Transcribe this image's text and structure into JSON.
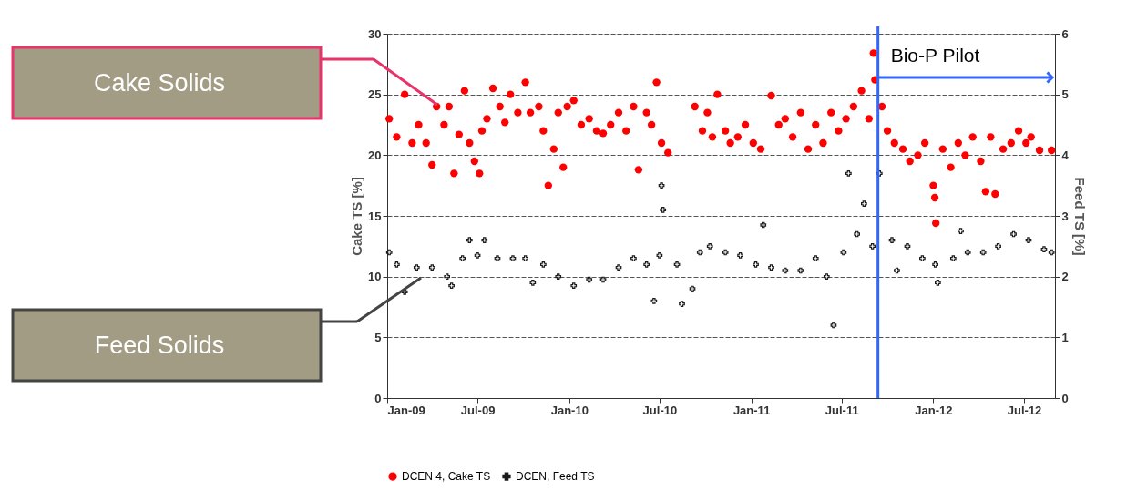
{
  "chart_data": {
    "type": "scatter",
    "ylabel": "Cake TS [%]",
    "y2label": "Feed TS [%]",
    "xlim": [
      "2009-01-01",
      "2012-09-01"
    ],
    "xticks": [
      {
        "value": "2009-01-01",
        "label": "Jan-09"
      },
      {
        "value": "2009-07-01",
        "label": "Jul-09"
      },
      {
        "value": "2010-01-01",
        "label": "Jan-10"
      },
      {
        "value": "2010-07-01",
        "label": "Jul-10"
      },
      {
        "value": "2011-01-01",
        "label": "Jan-11"
      },
      {
        "value": "2011-07-01",
        "label": "Jul-11"
      },
      {
        "value": "2012-01-01",
        "label": "Jan-12"
      },
      {
        "value": "2012-07-01",
        "label": "Jul-12"
      }
    ],
    "ylim": [
      0,
      30
    ],
    "yticks": [
      0,
      5,
      10,
      15,
      20,
      25,
      30
    ],
    "y2lim": [
      0,
      6
    ],
    "y2ticks": [
      0,
      1,
      2,
      3,
      4,
      5,
      6
    ],
    "grid": "y",
    "legend": "bottom",
    "series": [
      {
        "name": "DCEN 4, Cake TS",
        "color": "#ff0000",
        "marker": "circle",
        "x": [
          "2009-01-05",
          "2009-01-20",
          "2009-02-05",
          "2009-02-20",
          "2009-03-05",
          "2009-03-20",
          "2009-04-01",
          "2009-04-10",
          "2009-04-25",
          "2009-05-05",
          "2009-05-15",
          "2009-05-25",
          "2009-06-05",
          "2009-06-15",
          "2009-06-25",
          "2009-07-05",
          "2009-07-10",
          "2009-07-20",
          "2009-08-01",
          "2009-08-15",
          "2009-08-25",
          "2009-09-05",
          "2009-09-20",
          "2009-10-05",
          "2009-10-15",
          "2009-11-01",
          "2009-11-10",
          "2009-11-20",
          "2009-12-01",
          "2009-12-10",
          "2009-12-20",
          "2009-12-28",
          "2010-01-10",
          "2010-01-25",
          "2010-02-10",
          "2010-02-25",
          "2010-03-10",
          "2010-03-25",
          "2010-04-10",
          "2010-04-25",
          "2010-05-10",
          "2010-05-20",
          "2010-06-05",
          "2010-06-15",
          "2010-06-25",
          "2010-07-05",
          "2010-07-18",
          "2010-09-10",
          "2010-09-25",
          "2010-10-05",
          "2010-10-15",
          "2010-10-25",
          "2010-11-10",
          "2010-11-20",
          "2010-12-05",
          "2010-12-20",
          "2011-01-05",
          "2011-01-20",
          "2011-02-10",
          "2011-02-25",
          "2011-03-10",
          "2011-03-25",
          "2011-04-10",
          "2011-04-25",
          "2011-05-10",
          "2011-05-25",
          "2011-06-10",
          "2011-06-25",
          "2011-07-10",
          "2011-07-25",
          "2011-08-10",
          "2011-08-25",
          "2011-09-03",
          "2011-09-06",
          "2011-09-20",
          "2011-10-01",
          "2011-10-15",
          "2011-11-01",
          "2011-11-15",
          "2011-12-01",
          "2011-12-15",
          "2012-01-01",
          "2012-01-04",
          "2012-01-06",
          "2012-01-20",
          "2012-02-05",
          "2012-02-20",
          "2012-03-05",
          "2012-03-20",
          "2012-04-05",
          "2012-04-15",
          "2012-04-25",
          "2012-05-04",
          "2012-05-20",
          "2012-06-05",
          "2012-06-20",
          "2012-07-05",
          "2012-07-15",
          "2012-08-01",
          "2012-08-25"
        ],
        "values": [
          23,
          21.5,
          25,
          21,
          22.5,
          21,
          19.2,
          24,
          22.5,
          24,
          18.5,
          21.7,
          25.3,
          21,
          19.5,
          18.5,
          22,
          23,
          25.5,
          24,
          22.7,
          25,
          23.5,
          26,
          23.5,
          24,
          22,
          17.5,
          20.5,
          23.5,
          19,
          24,
          24.5,
          22.5,
          23,
          22,
          21.8,
          22.5,
          23.5,
          22,
          24,
          18.8,
          23.5,
          22.5,
          26,
          21,
          20.2,
          24,
          22,
          23.5,
          21.5,
          25,
          22,
          21,
          21.5,
          22.5,
          21,
          20.5,
          24.9,
          22.5,
          23,
          21.5,
          23.5,
          20.5,
          22.5,
          21,
          23.5,
          22,
          23,
          24,
          25.3,
          23,
          28.4,
          26.2,
          24,
          22,
          21,
          20.5,
          19.5,
          20,
          21,
          17.5,
          16.5,
          14.4,
          20.5,
          19,
          21,
          20,
          21.5,
          19.5,
          17,
          21.5,
          16.8,
          20.5,
          21,
          22,
          21,
          21.5,
          20.4,
          20.4
        ]
      },
      {
        "name": "DCEN, Feed TS",
        "color": "#1a1a1a",
        "marker": "cross",
        "axis": "y2",
        "x": [
          "2009-01-05",
          "2009-01-20",
          "2009-02-05",
          "2009-03-01",
          "2009-04-01",
          "2009-05-01",
          "2009-05-10",
          "2009-06-01",
          "2009-06-15",
          "2009-07-01",
          "2009-07-15",
          "2009-08-10",
          "2009-09-10",
          "2009-10-05",
          "2009-10-20",
          "2009-11-10",
          "2009-12-10",
          "2010-01-10",
          "2010-02-10",
          "2010-03-10",
          "2010-04-10",
          "2010-05-10",
          "2010-06-05",
          "2010-06-20",
          "2010-07-01",
          "2010-07-05",
          "2010-07-08",
          "2010-08-05",
          "2010-08-15",
          "2010-09-05",
          "2010-09-20",
          "2010-10-10",
          "2010-11-10",
          "2010-12-10",
          "2011-01-10",
          "2011-01-25",
          "2011-02-10",
          "2011-03-10",
          "2011-04-10",
          "2011-05-10",
          "2011-06-01",
          "2011-06-15",
          "2011-07-05",
          "2011-07-15",
          "2011-08-01",
          "2011-08-15",
          "2011-09-01",
          "2011-09-15",
          "2011-10-10",
          "2011-10-20",
          "2011-11-10",
          "2011-12-10",
          "2012-01-05",
          "2012-01-10",
          "2012-02-10",
          "2012-02-25",
          "2012-03-10",
          "2012-04-10",
          "2012-05-10",
          "2012-06-10",
          "2012-07-10",
          "2012-08-10",
          "2012-08-25"
        ],
        "values": [
          2.4,
          2.2,
          1.75,
          2.15,
          2.15,
          2.0,
          1.85,
          2.3,
          2.6,
          2.35,
          2.6,
          2.3,
          2.3,
          2.3,
          1.9,
          2.2,
          2.0,
          1.85,
          1.95,
          1.95,
          2.15,
          2.3,
          2.2,
          1.6,
          2.35,
          3.5,
          3.1,
          2.2,
          1.55,
          1.8,
          2.4,
          2.5,
          2.4,
          2.35,
          2.2,
          2.85,
          2.15,
          2.1,
          2.1,
          2.3,
          2.0,
          1.2,
          2.4,
          3.7,
          2.7,
          3.2,
          2.5,
          3.7,
          2.6,
          2.1,
          2.5,
          2.3,
          2.2,
          1.9,
          2.3,
          2.75,
          2.4,
          2.4,
          2.5,
          2.7,
          2.6,
          2.45,
          2.4
        ]
      }
    ],
    "ref_lines": [
      {
        "axis": "x",
        "value": "2011-09-12",
        "label": "Bio-P Pilot",
        "color": "#3366ff"
      }
    ],
    "annotations": [
      "Cake Solids",
      "Feed Solids"
    ]
  }
}
